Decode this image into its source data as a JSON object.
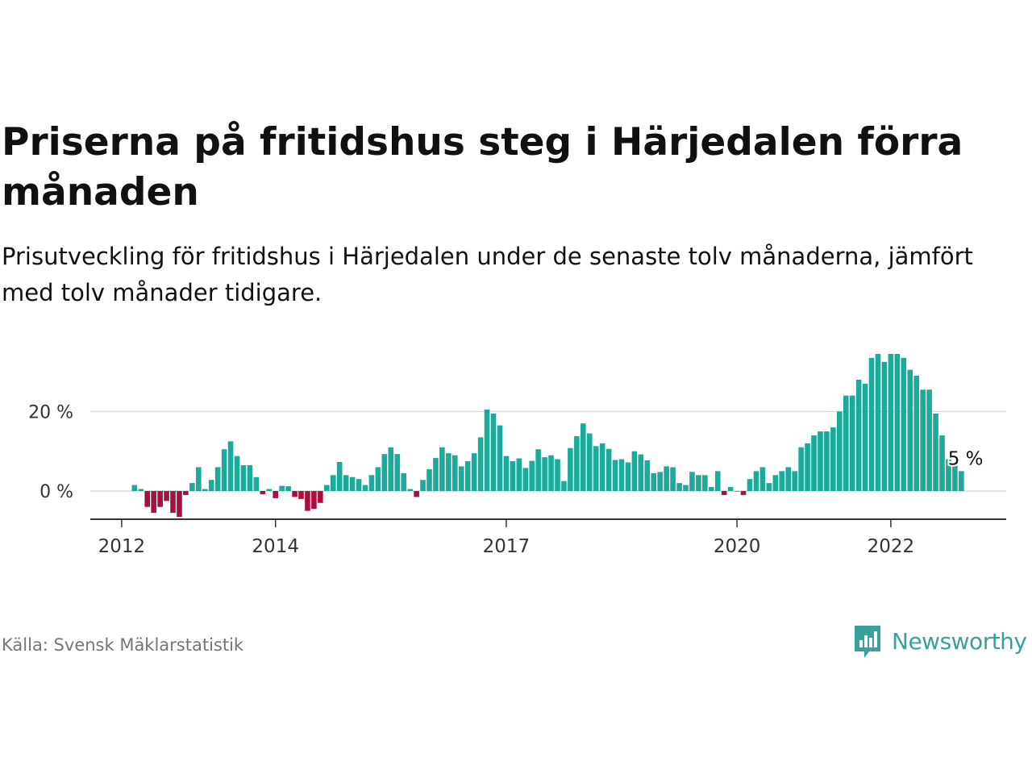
{
  "title": "Priserna på fritidshus steg i Härjedalen förra månaden",
  "subtitle": "Prisutveckling för fritidshus i Härjedalen under de senaste tolv månaderna, jämfört med tolv månader tidigare.",
  "source": "Källa: Svensk Mäklarstatistik",
  "brand": {
    "name": "Newsworthy",
    "icon": "newsworthy-logo-icon",
    "color": "#3aa09a"
  },
  "colors": {
    "positive": "#1aab9b",
    "negative": "#a8103f",
    "grid": "#d9d9d9",
    "axis": "#333333"
  },
  "chart_data": {
    "type": "bar",
    "title": "Priserna på fritidshus steg i Härjedalen förra månaden",
    "subtitle": "Prisutveckling för fritidshus i Härjedalen under de senaste tolv månaderna, jämfört med tolv månader tidigare.",
    "xlabel": "",
    "ylabel": "",
    "ylim": [
      -7,
      36
    ],
    "x_tick_labels": [
      "2012",
      "2014",
      "2017",
      "2020",
      "2022"
    ],
    "y_tick_labels": [
      "0 %",
      "20 %"
    ],
    "y_ticks": [
      0,
      20
    ],
    "grid": true,
    "annotation": {
      "text": "5 %",
      "series_point": "last"
    },
    "x_start": "2012-03",
    "x_end": "2023-01",
    "frequency": "monthly",
    "values": [
      1.5,
      0.5,
      -4,
      -5.5,
      -4,
      -2.5,
      -5.5,
      -6.5,
      -1,
      2,
      6,
      0.5,
      2.8,
      6,
      10.5,
      12.5,
      8.8,
      6.5,
      6.5,
      3.5,
      -0.8,
      0.5,
      -1.8,
      1.3,
      1.2,
      -1.5,
      -2,
      -5,
      -4.5,
      -3,
      1.5,
      4,
      7.3,
      4,
      3.5,
      3,
      1.5,
      4,
      6,
      9.3,
      11,
      9.3,
      4.5,
      0.5,
      -1.5,
      2.8,
      5.5,
      8.3,
      11,
      9.5,
      9,
      6.2,
      7.5,
      9.5,
      13.5,
      20.5,
      19.5,
      16.5,
      8.8,
      7.5,
      8.2,
      5.8,
      7.6,
      10.5,
      8.5,
      9,
      8,
      2.5,
      10.8,
      13.8,
      17,
      14.5,
      11.3,
      12,
      10.6,
      7.8,
      8,
      7.2,
      10,
      9.2,
      7.7,
      4.5,
      4.8,
      6.2,
      6,
      2,
      1.5,
      4.8,
      4,
      4,
      1,
      5,
      -1,
      1,
      0,
      -1,
      3,
      5,
      6,
      2,
      4,
      5,
      6,
      5,
      11,
      12,
      14,
      15,
      15,
      16,
      20,
      24,
      24,
      28,
      27,
      33.5,
      34.5,
      32.5,
      34.5,
      34.5,
      33.5,
      30.5,
      29,
      25.5,
      25.5,
      19.5,
      14,
      8,
      6.5,
      5
    ]
  }
}
